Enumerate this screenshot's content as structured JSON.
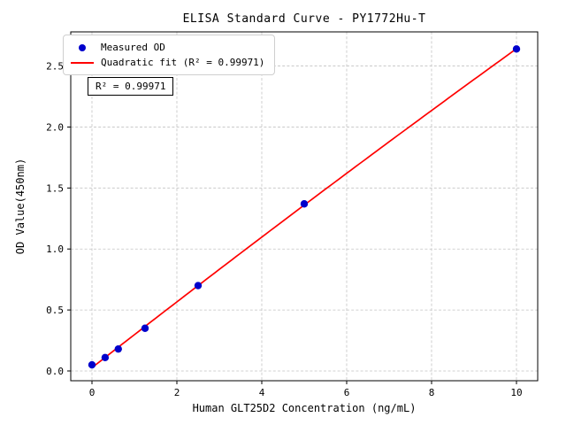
{
  "chart_data": {
    "type": "scatter",
    "title": "ELISA Standard Curve - PY1772Hu-T",
    "xlabel": "Human GLT25D2 Concentration (ng/mL)",
    "ylabel": "OD Value(450nm)",
    "x": [
      0,
      0.31,
      0.62,
      1.25,
      2.5,
      5,
      10
    ],
    "y": [
      0.05,
      0.11,
      0.18,
      0.35,
      0.7,
      1.37,
      2.64
    ],
    "xlim": [
      -0.5,
      10.5
    ],
    "ylim": [
      -0.08,
      2.78
    ],
    "xticks": [
      0,
      2,
      4,
      6,
      8,
      10
    ],
    "xtick_labels": [
      "0",
      "2",
      "4",
      "6",
      "8",
      "10"
    ],
    "yticks": [
      0.0,
      0.5,
      1.0,
      1.5,
      2.0,
      2.5
    ],
    "ytick_labels": [
      "0.0",
      "0.5",
      "1.0",
      "1.5",
      "2.0",
      "2.5"
    ],
    "grid": true,
    "fit": {
      "type": "quadratic",
      "r_squared": 0.99971
    },
    "annotation": "R² = 0.99971",
    "legend": {
      "position": "upper-left",
      "entries": [
        {
          "label": "Measured OD",
          "marker": "dot",
          "color": "#0000cc"
        },
        {
          "label": "Quadratic fit (R² = 0.99971)",
          "marker": "line",
          "color": "#ff0000"
        }
      ]
    },
    "colors": {
      "point": "#0000cc",
      "fit_line": "#ff0000",
      "frame": "#000000",
      "gridline": "#c3c3c3"
    }
  }
}
